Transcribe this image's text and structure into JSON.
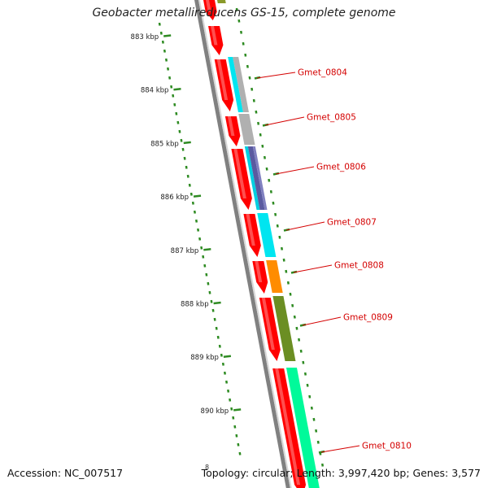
{
  "title": "Geobacter metallireducens GS-15, complete genome",
  "footer": {
    "accession": "Accession: NC_007517",
    "stats": "Topology: circular; Length: 3,997,420 bp; Genes: 3,577",
    "cut_label": "8"
  },
  "scale_ticks": [
    "883 kbp",
    "884 kbp",
    "885 kbp",
    "886 kbp",
    "887 kbp",
    "888 kbp",
    "889 kbp",
    "890 kbp"
  ],
  "genes": [
    {
      "id": "Gmet_0804",
      "color": "#b0b0b0",
      "label": "Gmet_0804"
    },
    {
      "id": "Gmet_0805",
      "color": "#b0b0b0",
      "label": "Gmet_0805"
    },
    {
      "id": "Gmet_0806",
      "color": "#5a5aa0",
      "label": "Gmet_0806"
    },
    {
      "id": "Gmet_0807",
      "color": "#00e5f0",
      "label": "Gmet_0807"
    },
    {
      "id": "Gmet_0808",
      "color": "#ff8c00",
      "label": "Gmet_0808"
    },
    {
      "id": "Gmet_0809",
      "color": "#6b8e23",
      "label": "Gmet_0809"
    },
    {
      "id": "Gmet_0810",
      "color": "#00fa9a",
      "label": "Gmet_0810"
    }
  ],
  "colors": {
    "cds": "#ff0000",
    "backbone": "#808080",
    "scale": "#2e8b22",
    "label": "#d40000"
  }
}
